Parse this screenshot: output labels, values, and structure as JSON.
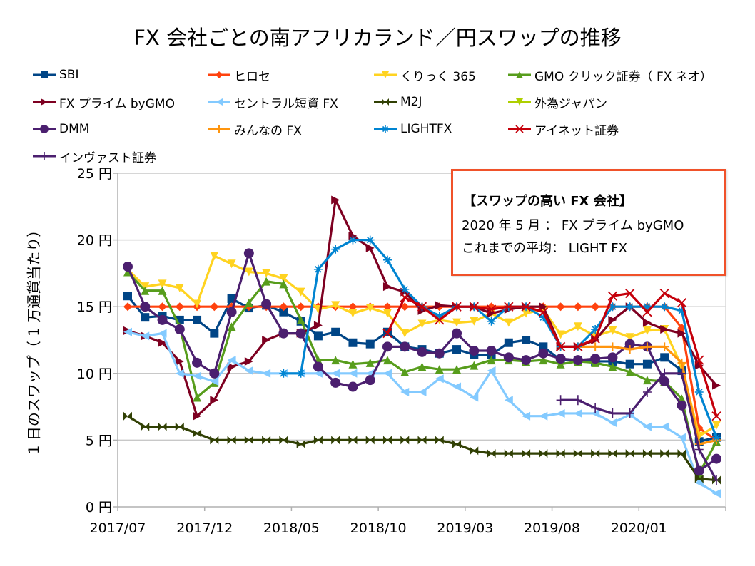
{
  "chart_data": {
    "type": "line",
    "title": "FX 会社ごとの南アフリカランド／円スワップの推移",
    "xlabel": "",
    "ylabel": "1 日のスワップ（ 1 万通貨当たり）",
    "ylim": [
      0,
      25
    ],
    "yticks": [
      0,
      5,
      10,
      15,
      20,
      25
    ],
    "ytick_labels": [
      "0 円",
      "5 円",
      "10 円",
      "15 円",
      "20 円",
      "25 円"
    ],
    "x": [
      "2017/07",
      "2017/08",
      "2017/09",
      "2017/10",
      "2017/11",
      "2017/12",
      "2018/01",
      "2018/02",
      "2018/03",
      "2018/04",
      "2018/05",
      "2018/06",
      "2018/07",
      "2018/08",
      "2018/09",
      "2018/10",
      "2018/11",
      "2018/12",
      "2019/01",
      "2019/02",
      "2019/03",
      "2019/04",
      "2019/05",
      "2019/06",
      "2019/07",
      "2019/08",
      "2019/09",
      "2019/10",
      "2019/11",
      "2019/12",
      "2020/01",
      "2020/02",
      "2020/03",
      "2020/04",
      "2020/05"
    ],
    "xtick_labels": [
      "2017/07",
      "2017/12",
      "2018/05",
      "2018/10",
      "2019/03",
      "2019/08",
      "2020/01"
    ],
    "grid": "horizontal",
    "legend_position": "top",
    "series": [
      {
        "name": "SBI",
        "color": "#004586",
        "marker": "square",
        "values": [
          15.8,
          14.2,
          14.3,
          14.0,
          14.0,
          13.0,
          15.6,
          14.9,
          15.1,
          14.6,
          13.9,
          12.8,
          13.1,
          12.3,
          12.2,
          13.1,
          12.0,
          11.8,
          11.5,
          11.8,
          11.4,
          11.4,
          12.3,
          12.5,
          12.0,
          11.0,
          11.0,
          10.9,
          10.9,
          10.7,
          10.7,
          11.2,
          10.2,
          4.9,
          5.2
        ]
      },
      {
        "name": "ヒロセ",
        "color": "#ff420e",
        "marker": "diamond",
        "values": [
          15.0,
          15.0,
          15.0,
          15.0,
          15.0,
          15.0,
          15.0,
          15.0,
          15.0,
          15.0,
          15.0,
          15.0,
          15.0,
          15.0,
          15.0,
          15.0,
          15.0,
          15.0,
          15.0,
          15.0,
          15.0,
          15.0,
          15.0,
          15.0,
          15.0,
          15.0,
          15.0,
          15.0,
          15.0,
          15.0,
          15.0,
          15.0,
          13.4,
          5.9,
          5.0
        ]
      },
      {
        "name": "くりっく 365",
        "color": "#ffd320",
        "marker": "triangle-down",
        "values": [
          17.8,
          16.5,
          16.7,
          16.4,
          15.2,
          18.8,
          18.2,
          17.6,
          17.5,
          17.1,
          16.1,
          14.8,
          15.1,
          14.5,
          14.9,
          14.5,
          13.0,
          13.7,
          14.0,
          13.8,
          13.9,
          14.5,
          13.8,
          14.5,
          14.8,
          12.9,
          13.5,
          12.8,
          13.2,
          12.7,
          13.2,
          13.3,
          10.5,
          5.3,
          6.1
        ]
      },
      {
        "name": "GMO クリック証券（ FX ネオ）",
        "color": "#579d1c",
        "marker": "triangle-up",
        "values": [
          17.6,
          16.2,
          16.2,
          13.5,
          8.2,
          9.3,
          13.5,
          15.3,
          16.9,
          16.7,
          14.0,
          11.0,
          11.0,
          10.7,
          10.8,
          11.0,
          10.1,
          10.5,
          10.3,
          10.3,
          10.6,
          11.0,
          11.0,
          10.9,
          11.0,
          10.7,
          10.9,
          10.8,
          10.5,
          10.1,
          9.5,
          9.4,
          8.1,
          2.5,
          4.9
        ]
      },
      {
        "name": "FX プライム byGMO",
        "color": "#7e0021",
        "marker": "triangle-right",
        "values": [
          13.2,
          12.8,
          12.3,
          10.9,
          6.8,
          8.0,
          10.5,
          10.9,
          12.5,
          13.0,
          13.0,
          13.6,
          23.0,
          20.3,
          19.4,
          16.5,
          16.1,
          14.7,
          15.1,
          15.0,
          15.0,
          14.5,
          14.8,
          15.0,
          15.0,
          12.0,
          12.0,
          12.5,
          14.0,
          15.0,
          13.8,
          13.3,
          13.0,
          10.6,
          9.1
        ]
      },
      {
        "name": "セントラル短資 FX",
        "color": "#83caff",
        "marker": "triangle-left",
        "values": [
          13.1,
          12.8,
          13.0,
          10.0,
          9.8,
          9.4,
          11.0,
          10.2,
          10.0,
          10.0,
          10.0,
          10.0,
          10.0,
          10.0,
          10.0,
          10.0,
          8.6,
          8.6,
          9.6,
          9.0,
          8.2,
          10.2,
          8.0,
          6.8,
          6.8,
          7.0,
          7.0,
          7.0,
          6.3,
          6.9,
          6.0,
          6.0,
          5.2,
          1.8,
          1.0
        ]
      },
      {
        "name": "M2J",
        "color": "#314004",
        "marker": "bowtie",
        "values": [
          6.8,
          6.0,
          6.0,
          6.0,
          5.5,
          5.0,
          5.0,
          5.0,
          5.0,
          5.0,
          4.7,
          5.0,
          5.0,
          5.0,
          5.0,
          5.0,
          5.0,
          5.0,
          5.0,
          4.7,
          4.2,
          4.0,
          4.0,
          4.0,
          4.0,
          4.0,
          4.0,
          4.0,
          4.0,
          4.0,
          4.0,
          4.0,
          4.0,
          2.1,
          2.0
        ]
      },
      {
        "name": "外為ジャパン",
        "color": "#aecf00",
        "marker": "triangle-down",
        "values": []
      },
      {
        "name": "DMM",
        "color": "#4b1f6f",
        "marker": "circle",
        "values": [
          18.0,
          15.0,
          14.0,
          13.3,
          10.8,
          10.0,
          14.6,
          19.0,
          15.2,
          13.0,
          13.0,
          10.5,
          9.3,
          9.0,
          9.5,
          12.0,
          12.0,
          11.6,
          11.5,
          13.0,
          11.7,
          11.7,
          11.2,
          11.0,
          11.5,
          11.1,
          11.0,
          11.1,
          11.2,
          12.2,
          12.0,
          9.4,
          7.6,
          2.7,
          3.6
        ]
      },
      {
        "name": "みんなの FX",
        "color": "#ff950e",
        "marker": "plus",
        "values": [
          null,
          null,
          null,
          null,
          null,
          null,
          null,
          null,
          null,
          null,
          null,
          null,
          null,
          null,
          null,
          null,
          null,
          null,
          null,
          null,
          null,
          null,
          null,
          null,
          null,
          12.0,
          12.0,
          12.0,
          12.0,
          11.8,
          12.0,
          12.0,
          10.8,
          4.7,
          5.0
        ]
      },
      {
        "name": "LIGHTFX",
        "color": "#0084d1",
        "marker": "asterisk",
        "values": [
          null,
          null,
          null,
          null,
          null,
          null,
          null,
          null,
          null,
          10.0,
          10.0,
          17.8,
          19.3,
          20.0,
          20.0,
          18.5,
          16.3,
          15.0,
          14.3,
          15.0,
          15.0,
          13.9,
          15.0,
          15.0,
          14.2,
          12.0,
          12.0,
          13.3,
          15.0,
          15.0,
          15.0,
          15.0,
          14.7,
          8.6,
          5.2
        ]
      },
      {
        "name": "アイネット証券",
        "color": "#c5000b",
        "marker": "x",
        "values": [
          null,
          null,
          null,
          null,
          null,
          null,
          null,
          null,
          null,
          null,
          null,
          null,
          null,
          null,
          null,
          13.0,
          15.7,
          15.0,
          14.0,
          15.0,
          15.0,
          14.8,
          15.0,
          15.0,
          14.6,
          12.0,
          12.0,
          12.6,
          15.8,
          16.0,
          14.6,
          16.0,
          15.3,
          11.0,
          6.8
        ]
      },
      {
        "name": "インヴァスト証券",
        "color": "#4b1f6f",
        "marker": "plus-thin",
        "values": [
          null,
          null,
          null,
          null,
          null,
          null,
          null,
          null,
          null,
          null,
          null,
          null,
          null,
          null,
          null,
          null,
          null,
          null,
          null,
          null,
          null,
          null,
          null,
          null,
          null,
          8.0,
          8.0,
          7.4,
          7.0,
          7.0,
          8.6,
          10.0,
          10.0,
          4.3,
          2.0
        ]
      }
    ],
    "annotation": {
      "heading": "【スワップの高い FX 会社】",
      "line1": "2020 年 5 月 ： FX プライム byGMO",
      "line2": "これまでの平均： LIGHT FX"
    }
  }
}
